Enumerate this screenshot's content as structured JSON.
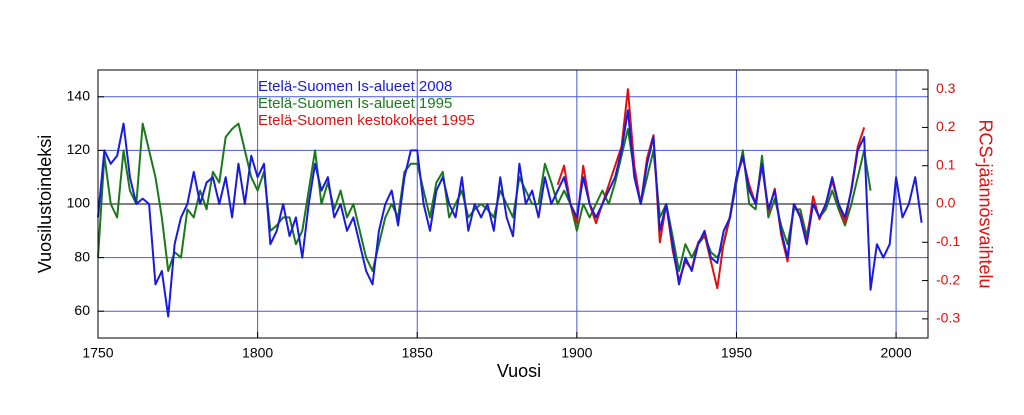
{
  "chart_data": {
    "type": "line",
    "xlabel": "Vuosi",
    "ylabel": "Vuosilustoindeksi",
    "y2label": "RCS-jäännösvaihtelu",
    "x": [
      1750,
      1752,
      1754,
      1756,
      1758,
      1760,
      1762,
      1764,
      1766,
      1768,
      1770,
      1772,
      1774,
      1776,
      1778,
      1780,
      1782,
      1784,
      1786,
      1788,
      1790,
      1792,
      1794,
      1796,
      1798,
      1800,
      1802,
      1804,
      1806,
      1808,
      1810,
      1812,
      1814,
      1816,
      1818,
      1820,
      1822,
      1824,
      1826,
      1828,
      1830,
      1832,
      1834,
      1836,
      1838,
      1840,
      1842,
      1844,
      1846,
      1848,
      1850,
      1852,
      1854,
      1856,
      1858,
      1860,
      1862,
      1864,
      1866,
      1868,
      1870,
      1872,
      1874,
      1876,
      1878,
      1880,
      1882,
      1884,
      1886,
      1888,
      1890,
      1892,
      1894,
      1896,
      1898,
      1900,
      1902,
      1904,
      1906,
      1908,
      1910,
      1912,
      1914,
      1916,
      1918,
      1920,
      1922,
      1924,
      1926,
      1928,
      1930,
      1932,
      1934,
      1936,
      1938,
      1940,
      1942,
      1944,
      1946,
      1948,
      1950,
      1952,
      1954,
      1956,
      1958,
      1960,
      1962,
      1964,
      1966,
      1968,
      1970,
      1972,
      1974,
      1976,
      1978,
      1980,
      1982,
      1984,
      1986,
      1988,
      1990,
      1992,
      1994,
      1996,
      1998,
      2000,
      2002,
      2004,
      2006,
      2008
    ],
    "series": [
      {
        "name": "Etelä-Suomen Is-alueet 2008",
        "color": "#1a1ae0",
        "axis": "y",
        "values": [
          95,
          120,
          115,
          118,
          130,
          110,
          100,
          102,
          100,
          70,
          75,
          58,
          85,
          95,
          100,
          112,
          100,
          108,
          110,
          100,
          110,
          95,
          115,
          100,
          118,
          110,
          115,
          85,
          90,
          100,
          88,
          95,
          80,
          100,
          115,
          105,
          110,
          95,
          100,
          90,
          95,
          85,
          75,
          70,
          90,
          100,
          105,
          92,
          110,
          120,
          120,
          100,
          90,
          105,
          110,
          100,
          95,
          110,
          90,
          100,
          95,
          100,
          90,
          110,
          95,
          88,
          115,
          100,
          105,
          95,
          110,
          100,
          105,
          110,
          100,
          95,
          110,
          100,
          95,
          100,
          105,
          110,
          120,
          135,
          110,
          100,
          115,
          125,
          90,
          100,
          85,
          70,
          80,
          75,
          85,
          90,
          80,
          78,
          90,
          95,
          110,
          118,
          105,
          100,
          115,
          98,
          105,
          90,
          80,
          100,
          95,
          85,
          100,
          95,
          100,
          110,
          100,
          95,
          105,
          120,
          125,
          68,
          85,
          80,
          85,
          110,
          95,
          100,
          110,
          93
        ]
      },
      {
        "name": "Etelä-Suomen Is-alueet 1995",
        "color": "#1a7a1a",
        "axis": "y",
        "values": [
          80,
          118,
          100,
          95,
          120,
          105,
          100,
          130,
          120,
          110,
          95,
          75,
          82,
          80,
          98,
          95,
          105,
          98,
          112,
          108,
          125,
          128,
          130,
          120,
          110,
          105,
          112,
          90,
          92,
          95,
          95,
          85,
          90,
          105,
          120,
          100,
          108,
          98,
          105,
          95,
          100,
          90,
          80,
          75,
          85,
          95,
          100,
          95,
          112,
          115,
          115,
          105,
          95,
          108,
          112,
          95,
          100,
          105,
          95,
          98,
          100,
          98,
          95,
          105,
          100,
          95,
          110,
          105,
          100,
          100,
          115,
          108,
          100,
          105,
          100,
          90,
          100,
          95,
          100,
          105,
          100,
          108,
          118,
          128,
          112,
          100,
          110,
          120,
          95,
          100,
          88,
          75,
          85,
          80,
          85,
          88,
          82,
          80,
          85,
          95,
          108,
          120,
          100,
          98,
          118,
          95,
          102,
          92,
          85,
          98,
          98,
          88,
          100,
          95,
          98,
          105,
          98,
          92,
          100,
          110,
          120,
          105,
          null,
          null,
          null,
          null,
          null,
          null,
          null,
          null
        ]
      },
      {
        "name": "Etelä-Suomen kestokokeet 1995",
        "color": "#e01010",
        "axis": "y2",
        "values": [
          null,
          null,
          null,
          null,
          null,
          null,
          null,
          null,
          null,
          null,
          null,
          null,
          null,
          null,
          null,
          null,
          null,
          null,
          null,
          null,
          null,
          null,
          null,
          null,
          null,
          null,
          null,
          null,
          null,
          null,
          null,
          null,
          null,
          null,
          null,
          null,
          null,
          null,
          null,
          null,
          null,
          null,
          null,
          null,
          null,
          null,
          null,
          null,
          null,
          null,
          null,
          null,
          null,
          null,
          null,
          null,
          null,
          null,
          null,
          null,
          null,
          null,
          null,
          null,
          null,
          null,
          null,
          null,
          null,
          null,
          null,
          null,
          0.05,
          0.1,
          0.0,
          -0.05,
          0.1,
          0.0,
          -0.05,
          0.0,
          0.05,
          0.1,
          0.15,
          0.3,
          0.1,
          0.0,
          0.12,
          0.18,
          -0.1,
          0.0,
          -0.12,
          -0.2,
          -0.15,
          -0.17,
          -0.1,
          -0.08,
          -0.15,
          -0.22,
          -0.1,
          -0.03,
          0.07,
          0.12,
          0.05,
          0.0,
          0.1,
          -0.02,
          0.04,
          -0.08,
          -0.15,
          0.0,
          -0.03,
          -0.1,
          0.02,
          -0.04,
          0.0,
          0.06,
          0.0,
          -0.05,
          0.04,
          0.15,
          0.2,
          null,
          null,
          null,
          null,
          null,
          null,
          null,
          null,
          null
        ]
      }
    ],
    "xlim": [
      1750,
      2010
    ],
    "xticks": [
      1750,
      1800,
      1850,
      1900,
      1950,
      2000
    ],
    "ylim": [
      50,
      150
    ],
    "yticks": [
      60,
      80,
      100,
      120,
      140
    ],
    "y2lim": [
      -0.35,
      0.35
    ],
    "y2ticks": [
      -0.3,
      -0.2,
      -0.1,
      {
        "value": 0,
        "label": "0.0"
      },
      0.1,
      0.2,
      0.3
    ],
    "y2color": "#e01010",
    "grid": true,
    "legend": "upper left"
  }
}
